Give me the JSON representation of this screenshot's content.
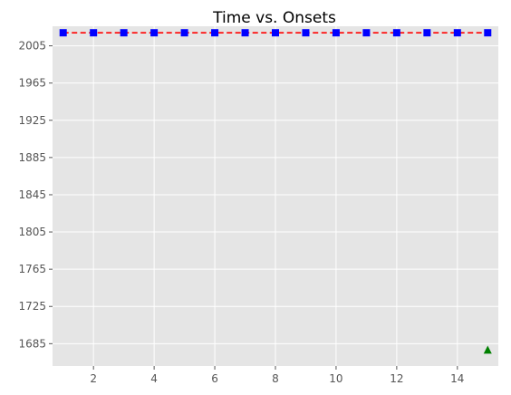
{
  "chart_data": {
    "type": "line",
    "title": "Time vs. Onsets",
    "xlabel": "",
    "ylabel": "",
    "xlim": [
      0.65,
      15.35
    ],
    "ylim": [
      1661,
      2026
    ],
    "x_ticks": [
      2,
      4,
      6,
      8,
      10,
      12,
      14
    ],
    "y_ticks": [
      1685,
      1725,
      1765,
      1805,
      1845,
      1885,
      1925,
      1965,
      2005
    ],
    "grid": true,
    "series": [
      {
        "style": "dashed-line",
        "color": "#ff0000",
        "x": [
          1,
          2,
          3,
          4,
          5,
          6,
          7,
          8,
          9,
          10,
          11,
          12,
          13,
          14,
          15
        ],
        "y": [
          2019,
          2019,
          2019,
          2019,
          2019,
          2019,
          2019,
          2019,
          2019,
          2019,
          2019,
          2019,
          2019,
          2019,
          2019
        ]
      },
      {
        "style": "square-markers",
        "color": "#0000ff",
        "x": [
          1,
          2,
          3,
          4,
          5,
          6,
          7,
          8,
          9,
          10,
          11,
          12,
          13,
          14,
          15
        ],
        "y": [
          2019,
          2019,
          2019,
          2019,
          2019,
          2019,
          2019,
          2019,
          2019,
          2019,
          2019,
          2019,
          2019,
          2019,
          2019
        ]
      },
      {
        "style": "triangle-markers",
        "color": "#008000",
        "x": [
          15
        ],
        "y": [
          1678
        ]
      }
    ],
    "colors": {
      "plot_background": "#e5e5e5",
      "grid": "#ffffff",
      "tick_label": "#555555"
    }
  }
}
